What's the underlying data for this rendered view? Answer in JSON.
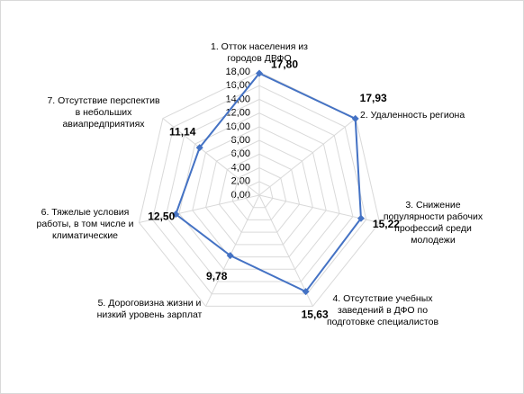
{
  "chart_data": {
    "type": "radar",
    "categories": [
      "1. Отток населения из городов ДВФО",
      "2. Удаленность региона",
      "3. Снижение популярности рабочих профессий среди молодежи",
      "4. Отсутствие учебных заведений в ДФО по подготовке специалистов",
      "5. Дороговизна жизни и низкий уровень зарплат",
      "6. Тяжелые условия работы, в том числе и климатические",
      "7. Отсутствие перспектив в небольших авиапредприятиях"
    ],
    "values": [
      17.8,
      17.93,
      15.22,
      15.63,
      9.78,
      12.5,
      11.14
    ],
    "value_labels": [
      "17,80",
      "17,93",
      "15,22",
      "15,63",
      "9,78",
      "12,50",
      "11,14"
    ],
    "color": "#4472c4",
    "ylim": [
      0,
      18
    ],
    "yticks": [
      {
        "value": 0,
        "label": "0,00"
      },
      {
        "value": 2,
        "label": "2,00"
      },
      {
        "value": 4,
        "label": "4,00"
      },
      {
        "value": 6,
        "label": "6,00"
      },
      {
        "value": 8,
        "label": "8,00"
      },
      {
        "value": 10,
        "label": "10,00"
      },
      {
        "value": 12,
        "label": "12,00"
      },
      {
        "value": 14,
        "label": "14,00"
      },
      {
        "value": 16,
        "label": "16,00"
      },
      {
        "value": 18,
        "label": "18,00"
      }
    ],
    "grid": true
  }
}
